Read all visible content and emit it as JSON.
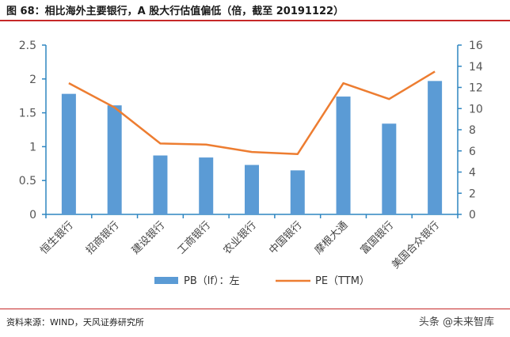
{
  "header": {
    "title": "图 68：相比海外主要银行，A 股大行估值偏低（倍，截至 20191122）"
  },
  "footer": {
    "source": "资料来源：WIND，天风证券研究所",
    "watermark": "头条 @未来智库"
  },
  "colors": {
    "bar": "#5b9bd5",
    "line": "#ed7d31",
    "axis": "#2e86c1",
    "accent_rule": "#c62828"
  },
  "chart_data": {
    "type": "bar",
    "categories": [
      "恒生银行",
      "招商银行",
      "建设银行",
      "工商银行",
      "农业银行",
      "中国银行",
      "摩根大通",
      "富国银行",
      "美国合众银行"
    ],
    "series": [
      {
        "name": "PB（lf）：左",
        "type": "bar",
        "axis": "left",
        "values": [
          1.78,
          1.61,
          0.87,
          0.84,
          0.73,
          0.65,
          1.74,
          1.34,
          1.97
        ]
      },
      {
        "name": "PE（TTM）",
        "type": "line",
        "axis": "right",
        "values": [
          12.4,
          10.1,
          6.7,
          6.6,
          5.9,
          5.7,
          12.4,
          10.9,
          13.5
        ]
      }
    ],
    "y_left": {
      "ylim": [
        0,
        2.5
      ],
      "ticks": [
        "0",
        "0.5",
        "1",
        "1.5",
        "2",
        "2.5"
      ]
    },
    "y_right": {
      "ylim": [
        0,
        16
      ],
      "ticks": [
        "0",
        "2",
        "4",
        "6",
        "8",
        "10",
        "12",
        "14",
        "16"
      ]
    },
    "legend_position": "bottom"
  }
}
